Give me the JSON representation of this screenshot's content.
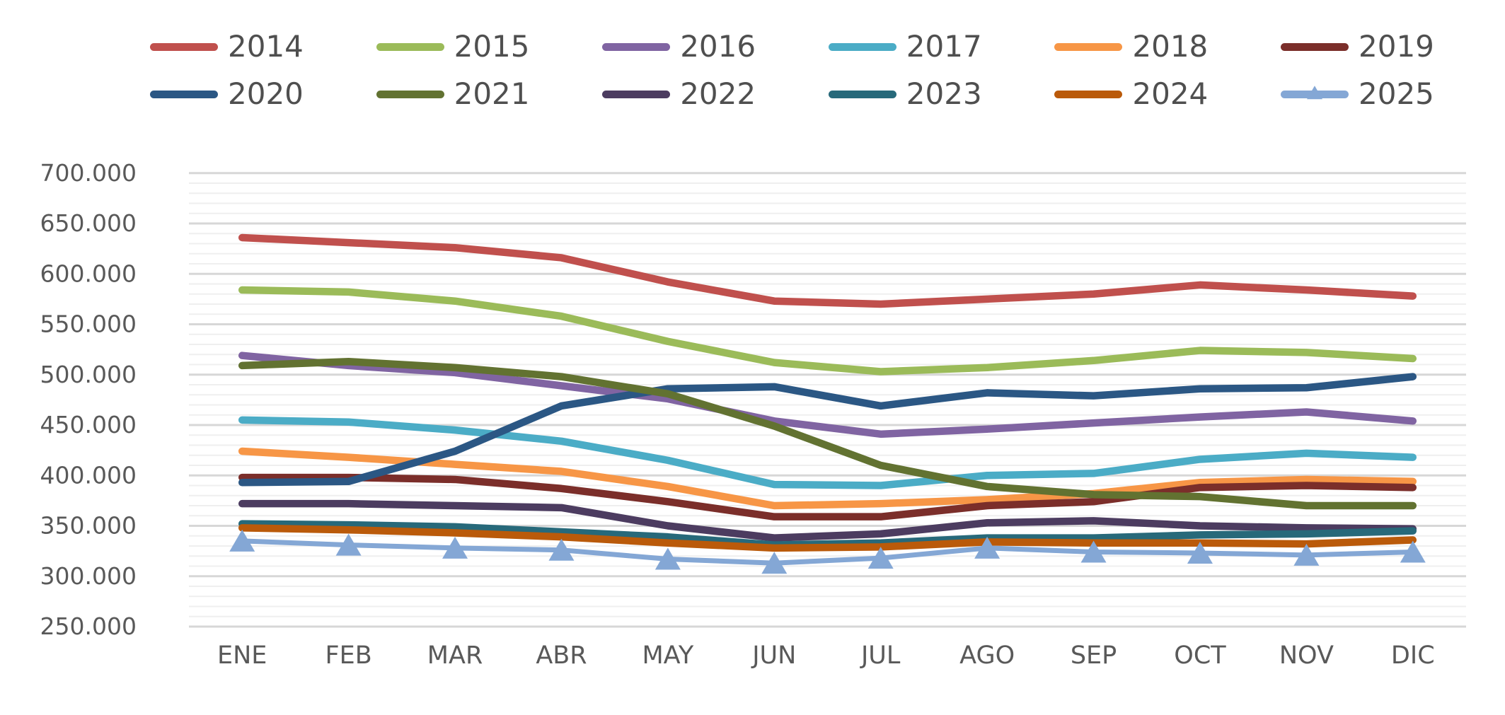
{
  "chart_data": {
    "type": "line",
    "title": "",
    "xlabel": "",
    "ylabel": "",
    "categories": [
      "ENE",
      "FEB",
      "MAR",
      "ABR",
      "MAY",
      "JUN",
      "JUL",
      "AGO",
      "SEP",
      "OCT",
      "NOV",
      "DIC"
    ],
    "y_tick_labels": [
      "700.000",
      "650.000",
      "600.000",
      "550.000",
      "500.000",
      "450.000",
      "400.000",
      "350.000",
      "300.000",
      "250.000"
    ],
    "ylim": [
      250000,
      700000
    ],
    "y_major_step": 50000,
    "y_minor_step": 10000,
    "grid": true,
    "legend_position": "top",
    "legend_columns": 6,
    "series": [
      {
        "name": "2014",
        "color": "#C0504D",
        "marker": "none",
        "values": [
          636000,
          631000,
          626000,
          616000,
          592000,
          573000,
          570000,
          575000,
          580000,
          589000,
          584000,
          578000
        ]
      },
      {
        "name": "2015",
        "color": "#9BBB59",
        "marker": "none",
        "values": [
          584000,
          582000,
          573000,
          558000,
          533000,
          512000,
          503000,
          507000,
          514000,
          524000,
          522000,
          516000
        ]
      },
      {
        "name": "2016",
        "color": "#8064A2",
        "marker": "none",
        "values": [
          519000,
          509000,
          502000,
          489000,
          476000,
          454000,
          441000,
          446000,
          452000,
          458000,
          463000,
          454000
        ]
      },
      {
        "name": "2017",
        "color": "#4BACC6",
        "marker": "none",
        "values": [
          455000,
          453000,
          445000,
          434000,
          415000,
          391000,
          390000,
          400000,
          402000,
          416000,
          422000,
          418000
        ]
      },
      {
        "name": "2018",
        "color": "#F79646",
        "marker": "none",
        "values": [
          424000,
          418000,
          411000,
          404000,
          389000,
          370000,
          372000,
          376000,
          382000,
          393000,
          396000,
          394000
        ]
      },
      {
        "name": "2019",
        "color": "#7B2E2A",
        "marker": "none",
        "values": [
          398000,
          398000,
          396000,
          387000,
          374000,
          359000,
          359000,
          370000,
          374000,
          388000,
          390000,
          388000
        ]
      },
      {
        "name": "2020",
        "color": "#2B5784",
        "marker": "none",
        "values": [
          393000,
          394000,
          424000,
          469000,
          486000,
          488000,
          469000,
          482000,
          479000,
          486000,
          487000,
          498000
        ]
      },
      {
        "name": "2021",
        "color": "#627231",
        "marker": "none",
        "values": [
          509000,
          513000,
          507000,
          498000,
          481000,
          449000,
          410000,
          389000,
          381000,
          379000,
          370000,
          370000
        ]
      },
      {
        "name": "2022",
        "color": "#4C3C60",
        "marker": "none",
        "values": [
          372000,
          372000,
          370000,
          368000,
          350000,
          338000,
          342000,
          353000,
          355000,
          350000,
          348000,
          347000
        ]
      },
      {
        "name": "2023",
        "color": "#27697A",
        "marker": "none",
        "values": [
          352000,
          351000,
          349000,
          344000,
          339000,
          331000,
          333000,
          338000,
          338000,
          341000,
          342000,
          345000
        ]
      },
      {
        "name": "2024",
        "color": "#BA5A0A",
        "marker": "none",
        "values": [
          348000,
          346000,
          343000,
          339000,
          333000,
          328000,
          329000,
          334000,
          333000,
          333000,
          332000,
          336000
        ]
      },
      {
        "name": "2025",
        "color": "#84A7D5",
        "marker": "triangle",
        "values": [
          335000,
          331000,
          328000,
          326000,
          317000,
          313000,
          318000,
          328000,
          324000,
          323000,
          321000,
          324000
        ]
      }
    ],
    "colors": {
      "major_gridline": "#D7D7D7",
      "minor_gridline": "#EFEFEF",
      "axis_text": "#595959",
      "legend_text": "#4F4F4F",
      "background": "#FFFFFF"
    }
  }
}
